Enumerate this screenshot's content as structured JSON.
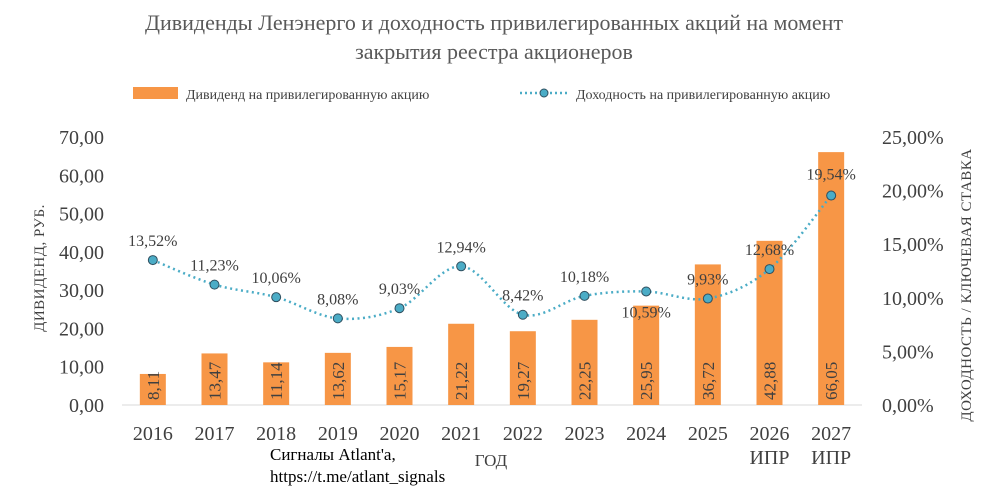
{
  "chart_data": {
    "type": "bar",
    "title_lines": [
      "Дивиденды Ленэнерго и доходность привилегированных акций на момент",
      "закрытия реестра акционеров"
    ],
    "xlabel": "ГОД",
    "ylabel": "ДИВИДЕНД, РУБ.",
    "y2label": "ДОХОДНОСТЬ / КЛЮЧЕВАЯ СТАВКА",
    "categories": [
      [
        "2016"
      ],
      [
        "2017"
      ],
      [
        "2018"
      ],
      [
        "2019"
      ],
      [
        "2020"
      ],
      [
        "2021"
      ],
      [
        "2022"
      ],
      [
        "2023"
      ],
      [
        "2024"
      ],
      [
        "2025"
      ],
      [
        "2026",
        "ИПР"
      ],
      [
        "2027",
        "ИПР"
      ]
    ],
    "ylim": [
      0,
      70
    ],
    "y_ticks": [
      "0,00",
      "10,00",
      "20,00",
      "30,00",
      "40,00",
      "50,00",
      "60,00",
      "70,00"
    ],
    "y2lim": [
      0,
      25
    ],
    "y2_ticks": [
      "0,00%",
      "5,00%",
      "10,00%",
      "15,00%",
      "20,00%",
      "25,00%"
    ],
    "legend_position": "top",
    "series": [
      {
        "name": "Дивиденд на привилегированную акцию",
        "kind": "bar",
        "color": "#F79646",
        "values": [
          8.11,
          13.47,
          11.14,
          13.62,
          15.17,
          21.22,
          19.27,
          22.25,
          25.95,
          36.72,
          42.88,
          66.05
        ],
        "labels": [
          "8,11",
          "13,47",
          "11,14",
          "13,62",
          "15,17",
          "21,22",
          "19,27",
          "22,25",
          "25,95",
          "36,72",
          "42,88",
          "66,05"
        ]
      },
      {
        "name": "Доходность на привилегированную акцию",
        "kind": "line",
        "axis": "secondary",
        "color": "#4BACC6",
        "values": [
          13.52,
          11.23,
          10.06,
          8.08,
          9.03,
          12.94,
          8.42,
          10.18,
          10.59,
          9.93,
          12.68,
          19.54
        ],
        "labels": [
          "13,52%",
          "11,23%",
          "10,06%",
          "8,08%",
          "9,03%",
          "12,94%",
          "8,42%",
          "10,18%",
          "10,59%",
          "9,93%",
          "12,68%",
          "19,54%"
        ]
      }
    ]
  },
  "credit": {
    "line1": "Сигналы Atlant'a,",
    "line2": "https://t.me/atlant_signals"
  }
}
